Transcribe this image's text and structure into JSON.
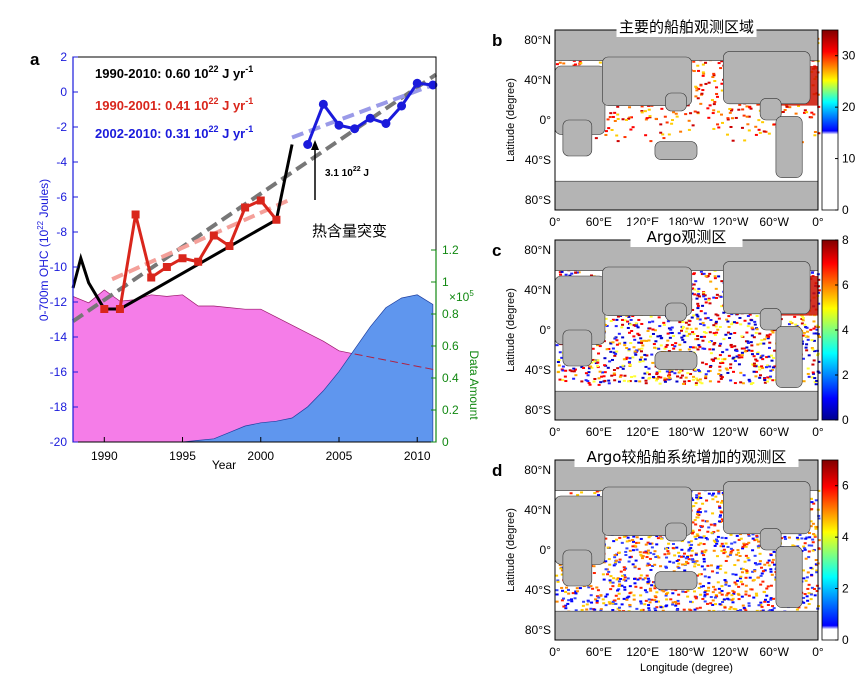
{
  "panel_a": {
    "label": "a",
    "annot_1990_2010": "1990-2010: 0.60 10",
    "annot_1990_2001": "1990-2001: 0.41 10",
    "annot_2002_2010": "2002-2010: 0.31 10",
    "annot_exp": "22",
    "annot_unit": " J yr",
    "annot_unit_exp": "-1",
    "jump_value": "3.1 10",
    "jump_exp": "22",
    "jump_unit": " J",
    "jump_label": "热含量突变",
    "scale_base": "×10",
    "scale_exp": "5",
    "left_axis_label": "0-700m OHC (10",
    "left_axis_exp": "22",
    "left_axis_unit": " Joules)",
    "right_axis_label": "Data Amount",
    "x_axis_label": "Year",
    "colors": {
      "black": "#000000",
      "red": "#d9261c",
      "blue": "#1a1adb",
      "green": "#118811",
      "pink": "#f57de8",
      "steel": "#5f96ee"
    }
  },
  "chart_data": [
    {
      "type": "line",
      "title": "",
      "xlabel": "Year",
      "ylabel": "0-700m OHC (10^22 Joules)",
      "xlim": [
        1988,
        2011.2
      ],
      "ylim": [
        -20,
        2
      ],
      "yticks": [
        2,
        0,
        -2,
        -4,
        -6,
        -8,
        -10,
        -12,
        -14,
        -16,
        -18,
        -20
      ],
      "xticks": [
        1990,
        1995,
        2000,
        2005,
        2010
      ],
      "y2label": "Data Amount",
      "y2lim": [
        0,
        1.2
      ],
      "y2ticks": [
        0,
        0.2,
        0.4,
        0.6,
        0.8,
        1,
        1.2
      ],
      "series": [
        {
          "name": "OHC black",
          "color": "#000000",
          "x": [
            1988,
            1988.5,
            1989,
            1990,
            1991,
            2001,
            2002
          ],
          "y": [
            -11.2,
            -9.5,
            -10.9,
            -12.4,
            -12.4,
            -7.3,
            -3.0
          ]
        },
        {
          "name": "1990-2001 OHC",
          "color": "#d9261c",
          "x": [
            1991,
            1992,
            1993,
            1994,
            1995,
            1996,
            1997,
            1998,
            1999,
            2000,
            2001
          ],
          "y": [
            -12.4,
            -7.0,
            -10.6,
            -10.0,
            -9.5,
            -9.7,
            -8.2,
            -8.8,
            -6.6,
            -6.2,
            -7.3
          ]
        },
        {
          "name": "2002-2010 OHC",
          "color": "#1a1adb",
          "x": [
            2003,
            2004,
            2005,
            2006,
            2007,
            2008,
            2009,
            2010,
            2011
          ],
          "y": [
            -3.0,
            -0.7,
            -1.9,
            -2.1,
            -1.5,
            -1.8,
            -0.8,
            0.5,
            0.4
          ]
        }
      ],
      "trends": [
        {
          "name": "1990-2010: 0.60 10^22 J yr^-1",
          "color": "#777777",
          "x": [
            1988,
            2011.2
          ],
          "y": [
            -13.1,
            1.0
          ]
        },
        {
          "name": "1990-2001: 0.41 10^22 J yr^-1",
          "color": "#f4a09a",
          "x": [
            1990.5,
            2002
          ],
          "y": [
            -10.7,
            -6.1
          ]
        },
        {
          "name": "2002-2010: 0.31 10^22 J yr^-1",
          "color": "#9a9ae8",
          "x": [
            2002,
            2011
          ],
          "y": [
            -2.6,
            0.4
          ]
        }
      ],
      "areas": [
        {
          "name": "ship data amount",
          "color": "#f57de8",
          "x": [
            1988,
            1989,
            1990,
            1991,
            1992,
            1993,
            1994,
            1995,
            1996,
            1997,
            1998,
            1999,
            2000,
            2001,
            2002,
            2003,
            2004,
            2005,
            2006
          ],
          "y": [
            0.91,
            0.87,
            0.95,
            0.88,
            0.89,
            0.92,
            0.91,
            0.92,
            0.85,
            0.85,
            0.84,
            0.83,
            0.83,
            0.78,
            0.73,
            0.68,
            0.63,
            0.57,
            0.55
          ]
        },
        {
          "name": "argo data amount",
          "color": "#5f96ee",
          "x": [
            1988,
            1995,
            1996,
            1997,
            1998,
            1999,
            2000,
            2001,
            2002,
            2003,
            2004,
            2005,
            2006,
            2007,
            2008,
            2009,
            2010,
            2011
          ],
          "y": [
            0,
            0,
            0.01,
            0.02,
            0.06,
            0.1,
            0.12,
            0.13,
            0.15,
            0.22,
            0.32,
            0.44,
            0.58,
            0.72,
            0.84,
            0.9,
            0.92,
            0.86
          ]
        }
      ],
      "annotations": [
        "3.1 10^22 J",
        "热含量突变"
      ]
    },
    {
      "type": "heatmap",
      "label": "b",
      "title": "主要的船舶观测区域",
      "xlabel": "",
      "ylabel": "Latitude (degree)",
      "yticks": [
        "80°N",
        "40°N",
        "0°",
        "40°S",
        "80°S"
      ],
      "xticks": [
        "0°",
        "60°E",
        "120°E",
        "180°W",
        "120°W",
        "60°W",
        "0°"
      ],
      "colorbar_ticks": [
        0,
        10,
        20,
        30
      ],
      "colorbar_lim": [
        0,
        35
      ]
    },
    {
      "type": "heatmap",
      "label": "c",
      "title": "Argo观测区",
      "xlabel": "",
      "ylabel": "Latitude (degree)",
      "yticks": [
        "80°N",
        "40°N",
        "0°",
        "40°S",
        "80°S"
      ],
      "xticks": [
        "0°",
        "60°E",
        "120°E",
        "180°W",
        "120°W",
        "60°W",
        "0°"
      ],
      "colorbar_ticks": [
        0,
        2,
        4,
        6,
        8
      ],
      "colorbar_lim": [
        0,
        8
      ]
    },
    {
      "type": "heatmap",
      "label": "d",
      "title": "Argo较船舶系统增加的观测区",
      "xlabel": "Longitude (degree)",
      "ylabel": "Latitude (degree)",
      "yticks": [
        "80°N",
        "40°N",
        "0°",
        "40°S",
        "80°S"
      ],
      "xticks": [
        "0°",
        "60°E",
        "120°E",
        "180°W",
        "120°W",
        "60°W",
        "0°"
      ],
      "colorbar_ticks": [
        0,
        2,
        4,
        6
      ],
      "colorbar_lim": [
        0,
        7
      ]
    }
  ]
}
